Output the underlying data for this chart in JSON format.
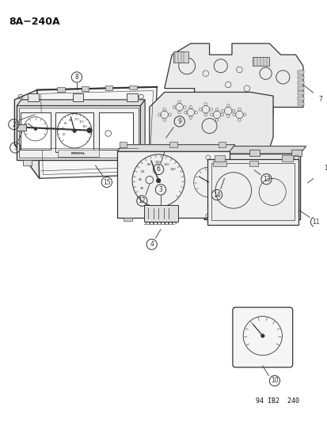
{
  "title": "8A−240A",
  "bg_color": "#ffffff",
  "line_color": "#333333",
  "label_color": "#111111",
  "footer": "94 IB2  240",
  "title_fontsize": 9,
  "footer_fontsize": 6,
  "label_fontsize": 6
}
